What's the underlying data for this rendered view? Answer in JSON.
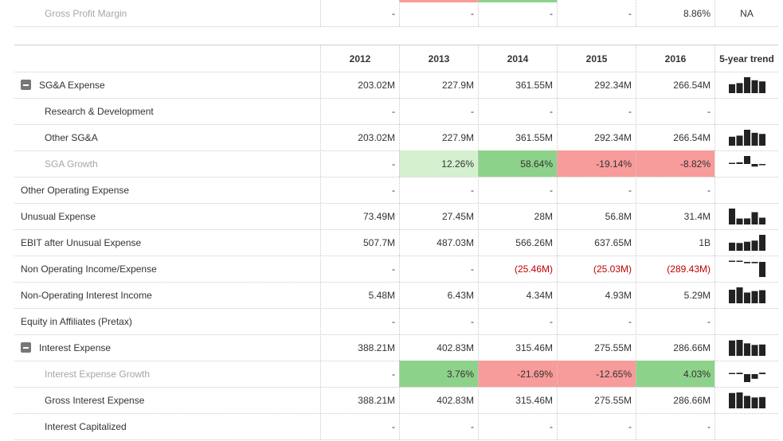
{
  "top_row": {
    "label": "Gross Profit Margin",
    "values": [
      "-",
      "-",
      "-",
      "-",
      "8.86%"
    ],
    "trend": "NA"
  },
  "header": {
    "years": [
      "2012",
      "2013",
      "2014",
      "2015",
      "2016"
    ],
    "trend_label": "5-year trend"
  },
  "rows": [
    {
      "label": "SG&A Expense",
      "values": [
        "203.02M",
        "227.9M",
        "361.55M",
        "292.34M",
        "266.54M"
      ],
      "toggle": true,
      "spark": [
        203.02,
        227.9,
        361.55,
        292.34,
        266.54
      ]
    },
    {
      "label": "Research & Development",
      "values": [
        "-",
        "-",
        "-",
        "-",
        "-"
      ],
      "indent": true
    },
    {
      "label": "Other SG&A",
      "values": [
        "203.02M",
        "227.9M",
        "361.55M",
        "292.34M",
        "266.54M"
      ],
      "indent": true,
      "spark": [
        203.02,
        227.9,
        361.55,
        292.34,
        266.54
      ]
    },
    {
      "label": "SGA Growth",
      "values": [
        "-",
        "12.26%",
        "58.64%",
        "-19.14%",
        "-8.82%"
      ],
      "indent": true,
      "muted": true,
      "cell_colors": [
        "",
        "#d4f0cf",
        "#8dd28a",
        "#f89b9b",
        "#f89b9b"
      ],
      "spark": [
        0,
        12.26,
        58.64,
        -19.14,
        -8.82
      ]
    },
    {
      "label": "Other Operating Expense",
      "values": [
        "-",
        "-",
        "-",
        "-",
        "-"
      ]
    },
    {
      "label": "Unusual Expense",
      "values": [
        "73.49M",
        "27.45M",
        "28M",
        "56.8M",
        "31.4M"
      ],
      "spark": [
        73.49,
        27.45,
        28,
        56.8,
        31.4
      ]
    },
    {
      "label": "EBIT after Unusual Expense",
      "values": [
        "507.7M",
        "487.03M",
        "566.26M",
        "637.65M",
        "1B"
      ],
      "spark": [
        507.7,
        487.03,
        566.26,
        637.65,
        1000
      ]
    },
    {
      "label": "Non Operating Income/Expense",
      "values": [
        "-",
        "-",
        "(25.46M)",
        "(25.03M)",
        "(289.43M)"
      ],
      "negative_cols": [
        2,
        3,
        4
      ],
      "spark": [
        0,
        0,
        -25.46,
        -25.03,
        -289.43
      ]
    },
    {
      "label": "Non-Operating Interest Income",
      "values": [
        "5.48M",
        "6.43M",
        "4.34M",
        "4.93M",
        "5.29M"
      ],
      "spark": [
        5.48,
        6.43,
        4.34,
        4.93,
        5.29
      ]
    },
    {
      "label": "Equity in Affiliates (Pretax)",
      "values": [
        "-",
        "-",
        "-",
        "-",
        "-"
      ]
    },
    {
      "label": "Interest Expense",
      "values": [
        "388.21M",
        "402.83M",
        "315.46M",
        "275.55M",
        "286.66M"
      ],
      "toggle": true,
      "spark": [
        388.21,
        402.83,
        315.46,
        275.55,
        286.66
      ]
    },
    {
      "label": "Interest Expense Growth",
      "values": [
        "-",
        "3.76%",
        "-21.69%",
        "-12.65%",
        "4.03%"
      ],
      "indent": true,
      "muted": true,
      "cell_colors": [
        "",
        "#8dd28a",
        "#f89b9b",
        "#f89b9b",
        "#8dd28a"
      ],
      "spark": [
        0,
        3.76,
        -21.69,
        -12.65,
        4.03
      ]
    },
    {
      "label": "Gross Interest Expense",
      "values": [
        "388.21M",
        "402.83M",
        "315.46M",
        "275.55M",
        "286.66M"
      ],
      "indent": true,
      "spark": [
        388.21,
        402.83,
        315.46,
        275.55,
        286.66
      ]
    },
    {
      "label": "Interest Capitalized",
      "values": [
        "-",
        "-",
        "-",
        "-",
        "-"
      ],
      "indent": true
    }
  ],
  "colors": {
    "positive_strong": "#8dd28a",
    "positive_light": "#d4f0cf",
    "negative": "#f89b9b",
    "negative_text": "#c00000",
    "spark_bar": "#222222"
  }
}
